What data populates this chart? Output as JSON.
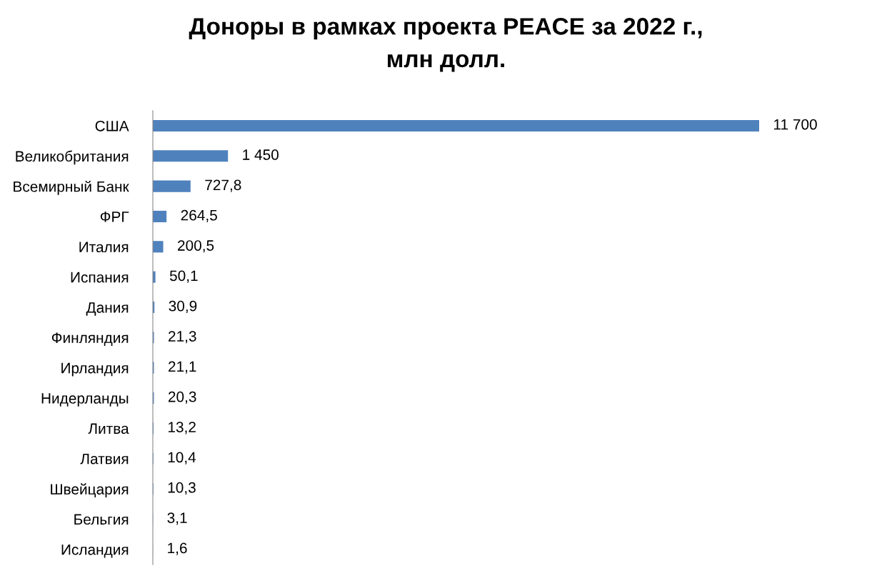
{
  "chart_data": {
    "type": "bar",
    "orientation": "horizontal",
    "title": "Доноры в рамках проекта PEACE за 2022 г.,\nмлн долл.",
    "categories": [
      "США",
      "Великобритания",
      "Всемирный Банк",
      "ФРГ",
      "Италия",
      "Испания",
      "Дания",
      "Финляндия",
      "Ирландия",
      "Нидерланды",
      "Литва",
      "Латвия",
      "Швейцария",
      "Бельгия",
      "Исландия"
    ],
    "values": [
      11700,
      1450,
      727.8,
      264.5,
      200.5,
      50.1,
      30.9,
      21.3,
      21.1,
      20.3,
      13.2,
      10.4,
      10.3,
      3.1,
      1.6
    ],
    "value_labels": [
      "11 700",
      "1 450",
      "727,8",
      "264,5",
      "200,5",
      "50,1",
      "30,9",
      "21,3",
      "21,1",
      "20,3",
      "13,2",
      "10,4",
      "10,3",
      "3,1",
      "1,6"
    ],
    "color": "#4f81bd",
    "grid": false,
    "legend": false
  }
}
